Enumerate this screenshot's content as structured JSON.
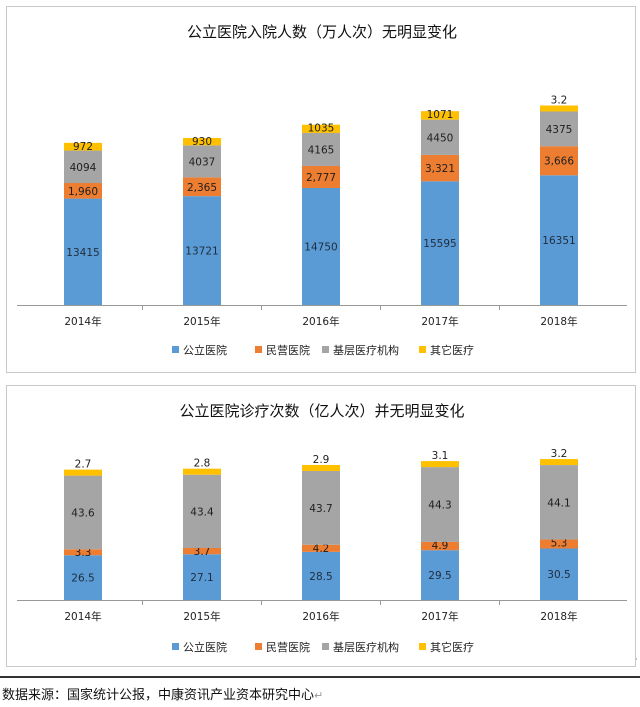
{
  "legend": [
    {
      "name": "公立医院",
      "color": "#5b9bd5"
    },
    {
      "name": "民营医院",
      "color": "#ed7d31"
    },
    {
      "name": "基层医疗机构",
      "color": "#a5a5a5"
    },
    {
      "name": "其它医疗",
      "color": "#ffc000"
    }
  ],
  "chart_data": [
    {
      "type": "bar",
      "stacked": true,
      "title": "公立医院入院人数（万人次）无明显变化",
      "categories": [
        "2014年",
        "2015年",
        "2016年",
        "2017年",
        "2018年"
      ],
      "series": [
        {
          "name": "公立医院",
          "values": [
            13415,
            13721,
            14750,
            15595,
            16351
          ],
          "labels": [
            "13415",
            "13721",
            "14750",
            "15595",
            "16351"
          ]
        },
        {
          "name": "民营医院",
          "values": [
            1960,
            2365,
            2777,
            3321,
            3666
          ],
          "labels": [
            "1,960",
            "2,365",
            "2,777",
            "3,321",
            "3,666"
          ]
        },
        {
          "name": "基层医疗机构",
          "values": [
            4094,
            4037,
            4165,
            4450,
            4375
          ],
          "labels": [
            "4094",
            "4037",
            "4165",
            "4450",
            "4375"
          ]
        },
        {
          "name": "其它医疗",
          "values": [
            972,
            930,
            1035,
            1071,
            3.2
          ],
          "labels": [
            "972",
            "930",
            "1035",
            "1071",
            "3.2"
          ]
        }
      ],
      "ylim": [
        0,
        30000
      ],
      "legend_position": "bottom",
      "grid": false
    },
    {
      "type": "bar",
      "stacked": true,
      "title": "公立医院诊疗次数（亿人次）并无明显变化",
      "categories": [
        "2014年",
        "2015年",
        "2016年",
        "2017年",
        "2018年"
      ],
      "series": [
        {
          "name": "公立医院",
          "values": [
            26.5,
            27.1,
            28.5,
            29.5,
            30.5
          ],
          "labels": [
            "26.5",
            "27.1",
            "28.5",
            "29.5",
            "30.5"
          ]
        },
        {
          "name": "民营医院",
          "values": [
            3.3,
            3.7,
            4.2,
            4.9,
            5.3
          ],
          "labels": [
            "3.3",
            "3.7",
            "4.2",
            "4.9",
            "5.3"
          ]
        },
        {
          "name": "基层医疗机构",
          "values": [
            43.6,
            43.4,
            43.7,
            44.3,
            44.1
          ],
          "labels": [
            "43.6",
            "43.4",
            "43.7",
            "44.3",
            "44.1"
          ]
        },
        {
          "name": "其它医疗",
          "values": [
            2.7,
            2.8,
            2.9,
            3.1,
            3.2
          ],
          "labels": [
            "2.7",
            "2.8",
            "2.9",
            "3.1",
            "3.2"
          ]
        }
      ],
      "ylim": [
        0,
        90
      ],
      "legend_position": "bottom",
      "grid": false
    }
  ],
  "source_text": "数据来源：国家统计公报，中康资讯产业资本研究中心",
  "source_mark": "↵"
}
